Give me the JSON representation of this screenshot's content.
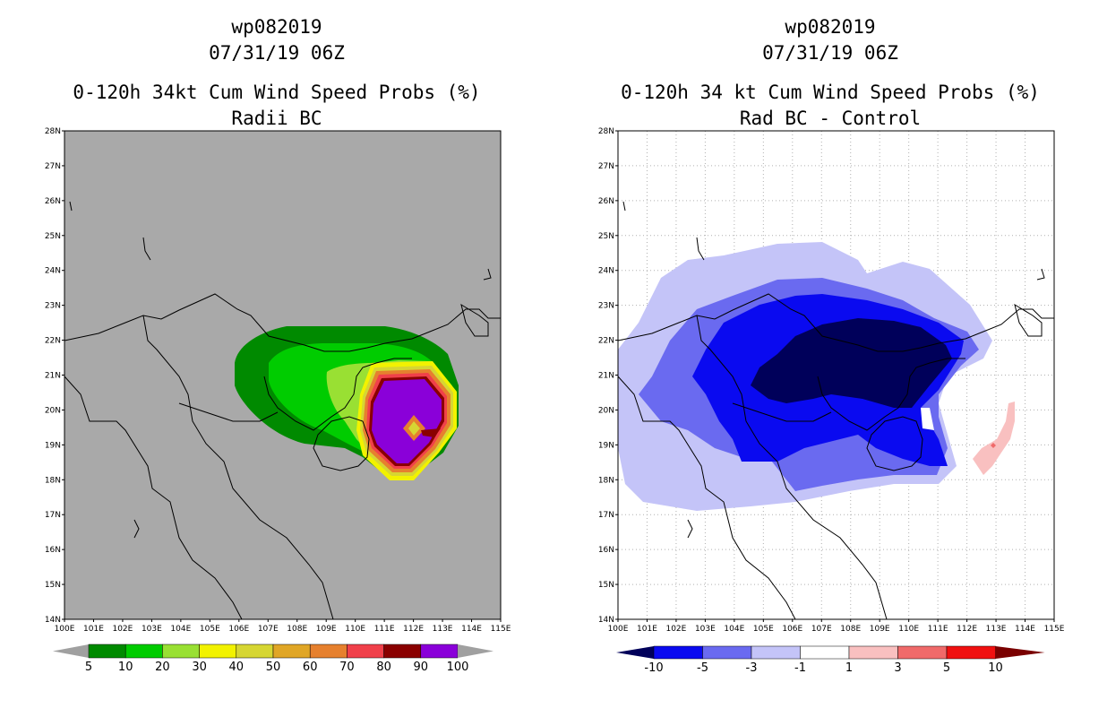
{
  "left_panel": {
    "title_storm": "wp082019",
    "title_time": "07/31/19 06Z",
    "title_product": "0-120h 34kt Cum Wind Speed Probs (%)",
    "title_subtitle": "Radii BC",
    "colorbar": {
      "labels": [
        "5",
        "10",
        "20",
        "30",
        "40",
        "50",
        "60",
        "70",
        "80",
        "90",
        "100"
      ],
      "colors": [
        "#008a00",
        "#00cc00",
        "#99e033",
        "#f2f200",
        "#d6d633",
        "#e0a626",
        "#e6802e",
        "#f0404a",
        "#8a0000",
        "#8a00d9"
      ],
      "end_color": "#a0a0a0"
    },
    "background_color": "#a9a9a9"
  },
  "right_panel": {
    "title_storm": "wp082019",
    "title_time": "07/31/19 06Z",
    "title_product": "0-120h 34 kt Cum Wind Speed Probs (%)",
    "title_subtitle": "Rad BC - Control",
    "colorbar": {
      "labels": [
        "-10",
        "-5",
        "-3",
        "-1",
        "1",
        "3",
        "5",
        "10"
      ],
      "colors": [
        "#00005a",
        "#0a0af0",
        "#6a6af0",
        "#c4c4f8",
        "#ffffff",
        "#f9c0c0",
        "#f06a6a",
        "#f01010",
        "#7a0000"
      ]
    },
    "background_color": "#ffffff"
  },
  "axes": {
    "lat_labels": [
      "28N",
      "27N",
      "26N",
      "25N",
      "24N",
      "23N",
      "22N",
      "21N",
      "20N",
      "19N",
      "18N",
      "17N",
      "16N",
      "15N",
      "14N"
    ],
    "lon_labels": [
      "100E",
      "101E",
      "102E",
      "103E",
      "104E",
      "105E",
      "106E",
      "107E",
      "108E",
      "109E",
      "110E",
      "111E",
      "112E",
      "113E",
      "114E",
      "115E"
    ]
  }
}
